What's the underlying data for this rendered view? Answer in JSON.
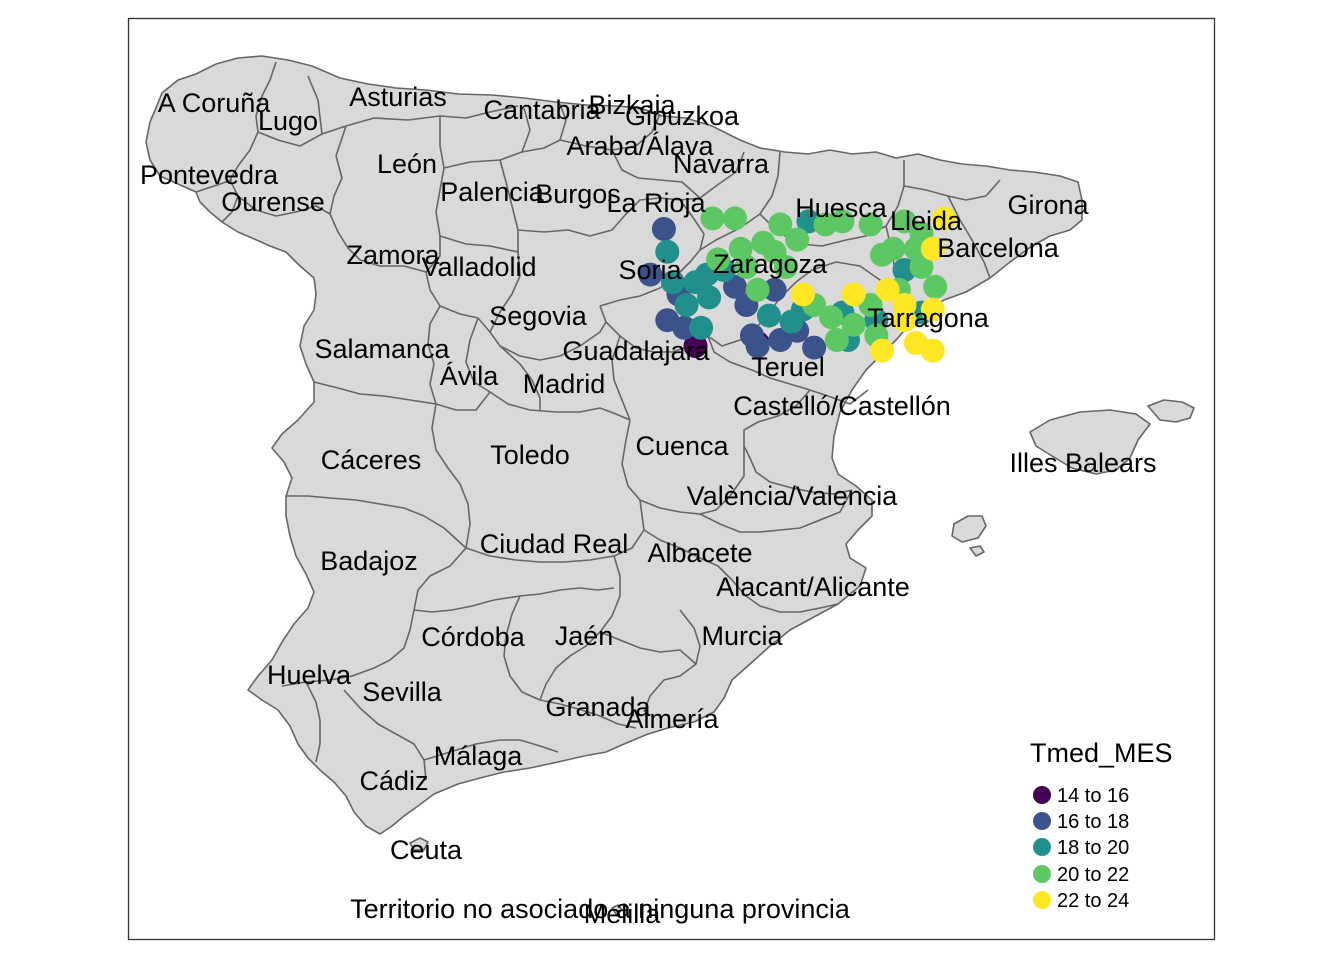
{
  "map": {
    "provinces": [
      {
        "key": "a-coruna",
        "label": "A Coruña"
      },
      {
        "key": "lugo",
        "label": "Lugo"
      },
      {
        "key": "asturias",
        "label": "Asturias"
      },
      {
        "key": "cantabria",
        "label": "Cantabria"
      },
      {
        "key": "bizkaia",
        "label": "Bizkaia"
      },
      {
        "key": "gipuzkoa",
        "label": "Gipuzkoa"
      },
      {
        "key": "araba",
        "label": "Araba/Álava"
      },
      {
        "key": "navarra",
        "label": "Navarra"
      },
      {
        "key": "pontevedra",
        "label": "Pontevedra"
      },
      {
        "key": "leon",
        "label": "León"
      },
      {
        "key": "ourense",
        "label": "Ourense"
      },
      {
        "key": "palencia",
        "label": "Palencia"
      },
      {
        "key": "burgos",
        "label": "Burgos"
      },
      {
        "key": "la-rioja",
        "label": "La Rioja"
      },
      {
        "key": "huesca",
        "label": "Huesca"
      },
      {
        "key": "lleida",
        "label": "Lleida"
      },
      {
        "key": "girona",
        "label": "Girona"
      },
      {
        "key": "barcelona",
        "label": "Barcelona"
      },
      {
        "key": "zamora",
        "label": "Zamora"
      },
      {
        "key": "valladolid",
        "label": "Valladolid"
      },
      {
        "key": "soria",
        "label": "Soria"
      },
      {
        "key": "zaragoza",
        "label": "Zaragoza"
      },
      {
        "key": "segovia",
        "label": "Segovia"
      },
      {
        "key": "tarragona",
        "label": "Tarragona"
      },
      {
        "key": "salamanca",
        "label": "Salamanca"
      },
      {
        "key": "guadalajara",
        "label": "Guadalajara"
      },
      {
        "key": "avila",
        "label": "Ávila"
      },
      {
        "key": "madrid",
        "label": "Madrid"
      },
      {
        "key": "teruel",
        "label": "Teruel"
      },
      {
        "key": "castellon",
        "label": "Castelló/Castellón"
      },
      {
        "key": "caceres",
        "label": "Cáceres"
      },
      {
        "key": "toledo",
        "label": "Toledo"
      },
      {
        "key": "cuenca",
        "label": "Cuenca"
      },
      {
        "key": "illes-balears",
        "label": "Illes Balears"
      },
      {
        "key": "valencia",
        "label": "València/Valencia"
      },
      {
        "key": "ciudad-real",
        "label": "Ciudad Real"
      },
      {
        "key": "albacete",
        "label": "Albacete"
      },
      {
        "key": "badajoz",
        "label": "Badajoz"
      },
      {
        "key": "alicante",
        "label": "Alacant/Alicante"
      },
      {
        "key": "cordoba",
        "label": "Córdoba"
      },
      {
        "key": "jaen",
        "label": "Jaén"
      },
      {
        "key": "murcia",
        "label": "Murcia"
      },
      {
        "key": "huelva",
        "label": "Huelva"
      },
      {
        "key": "sevilla",
        "label": "Sevilla"
      },
      {
        "key": "granada",
        "label": "Granada"
      },
      {
        "key": "almeria",
        "label": "Almería"
      },
      {
        "key": "malaga",
        "label": "Málaga"
      },
      {
        "key": "cadiz",
        "label": "Cádiz"
      },
      {
        "key": "ceuta",
        "label": "Ceuta"
      },
      {
        "key": "melilla",
        "label": "Melilla"
      },
      {
        "key": "territorio",
        "label": "Territorio no asociado a ninguna provincia"
      }
    ],
    "colors": {
      "land": "#d9d9d9",
      "border": "#666666",
      "frame": "#333333"
    }
  },
  "legend": {
    "title": "Tmed_MES",
    "placement": "bottom-right",
    "items": [
      {
        "label": "14 to 16",
        "color": "#440154"
      },
      {
        "label": "16 to 18",
        "color": "#3B528B"
      },
      {
        "label": "18 to 20",
        "color": "#21908C"
      },
      {
        "label": "20 to 22",
        "color": "#5DC863"
      },
      {
        "label": "22 to 24",
        "color": "#FDE725"
      }
    ]
  },
  "stations": {
    "class_colors": [
      "#440154",
      "#3B528B",
      "#21908C",
      "#5DC863",
      "#FDE725"
    ],
    "points": [
      {
        "c": 1,
        "lon": -1.78,
        "lat": 41.85
      },
      {
        "c": 1,
        "lon": -1.9,
        "lat": 41.55
      },
      {
        "c": 1,
        "lon": -1.65,
        "lat": 41.42
      },
      {
        "c": 1,
        "lon": -1.75,
        "lat": 41.25
      },
      {
        "c": 1,
        "lon": -1.6,
        "lat": 41.2
      },
      {
        "c": 1,
        "lon": -1.15,
        "lat": 41.47
      },
      {
        "c": 1,
        "lon": -1.05,
        "lat": 41.35
      },
      {
        "c": 1,
        "lon": -1.0,
        "lat": 41.15
      },
      {
        "c": 1,
        "lon": -0.75,
        "lat": 41.12
      },
      {
        "c": 1,
        "lon": -0.6,
        "lat": 41.18
      },
      {
        "c": 1,
        "lon": -0.45,
        "lat": 41.07
      },
      {
        "c": 1,
        "lon": -0.95,
        "lat": 41.08
      },
      {
        "c": 1,
        "lon": -0.8,
        "lat": 41.45
      },
      {
        "c": 0,
        "lon": -1.5,
        "lat": 41.08
      },
      {
        "c": 0,
        "lon": -0.95,
        "lat": 41.1
      },
      {
        "c": 2,
        "lon": -1.75,
        "lat": 41.7
      },
      {
        "c": 2,
        "lon": -1.7,
        "lat": 41.5
      },
      {
        "c": 2,
        "lon": -1.5,
        "lat": 41.5
      },
      {
        "c": 2,
        "lon": -1.58,
        "lat": 41.35
      },
      {
        "c": 2,
        "lon": -1.38,
        "lat": 41.4
      },
      {
        "c": 2,
        "lon": -1.4,
        "lat": 41.55
      },
      {
        "c": 2,
        "lon": -1.45,
        "lat": 41.2
      },
      {
        "c": 2,
        "lon": -1.25,
        "lat": 41.58
      },
      {
        "c": 2,
        "lon": -0.85,
        "lat": 41.28
      },
      {
        "c": 2,
        "lon": -0.5,
        "lat": 41.9
      },
      {
        "c": 2,
        "lon": -0.55,
        "lat": 41.32
      },
      {
        "c": 2,
        "lon": -0.65,
        "lat": 41.24
      },
      {
        "c": 2,
        "lon": -0.2,
        "lat": 41.3
      },
      {
        "c": 2,
        "lon": 0.1,
        "lat": 41.25
      },
      {
        "c": 2,
        "lon": 0.35,
        "lat": 41.58
      },
      {
        "c": 2,
        "lon": 0.5,
        "lat": 41.3
      },
      {
        "c": 2,
        "lon": -0.15,
        "lat": 41.12
      },
      {
        "c": 3,
        "lon": -1.35,
        "lat": 41.92
      },
      {
        "c": 3,
        "lon": -1.15,
        "lat": 41.92
      },
      {
        "c": 3,
        "lon": -0.75,
        "lat": 41.88
      },
      {
        "c": 3,
        "lon": -0.6,
        "lat": 41.78
      },
      {
        "c": 3,
        "lon": -0.35,
        "lat": 41.88
      },
      {
        "c": 3,
        "lon": -0.2,
        "lat": 41.9
      },
      {
        "c": 3,
        "lon": 0.05,
        "lat": 41.88
      },
      {
        "c": 3,
        "lon": 0.35,
        "lat": 41.9
      },
      {
        "c": 3,
        "lon": -1.1,
        "lat": 41.72
      },
      {
        "c": 3,
        "lon": -0.9,
        "lat": 41.76
      },
      {
        "c": 3,
        "lon": -0.8,
        "lat": 41.7
      },
      {
        "c": 3,
        "lon": -1.3,
        "lat": 41.65
      },
      {
        "c": 3,
        "lon": -1.05,
        "lat": 41.6
      },
      {
        "c": 3,
        "lon": -0.7,
        "lat": 41.6
      },
      {
        "c": 3,
        "lon": -0.95,
        "lat": 41.45
      },
      {
        "c": 3,
        "lon": -0.45,
        "lat": 41.35
      },
      {
        "c": 3,
        "lon": -0.3,
        "lat": 41.27
      },
      {
        "c": 3,
        "lon": -0.1,
        "lat": 41.22
      },
      {
        "c": 3,
        "lon": 0.15,
        "lat": 41.68
      },
      {
        "c": 3,
        "lon": 0.25,
        "lat": 41.72
      },
      {
        "c": 3,
        "lon": 0.45,
        "lat": 41.72
      },
      {
        "c": 3,
        "lon": 0.5,
        "lat": 41.6
      },
      {
        "c": 3,
        "lon": 0.3,
        "lat": 41.45
      },
      {
        "c": 3,
        "lon": 0.1,
        "lat": 41.15
      },
      {
        "c": 3,
        "lon": -0.25,
        "lat": 41.12
      },
      {
        "c": 3,
        "lon": 0.05,
        "lat": 41.35
      },
      {
        "c": 3,
        "lon": 0.5,
        "lat": 41.82
      },
      {
        "c": 3,
        "lon": 0.62,
        "lat": 41.47
      },
      {
        "c": 4,
        "lon": 0.7,
        "lat": 41.92
      },
      {
        "c": 4,
        "lon": 0.6,
        "lat": 41.72
      },
      {
        "c": 4,
        "lon": -0.1,
        "lat": 41.42
      },
      {
        "c": 4,
        "lon": -0.55,
        "lat": 41.42
      },
      {
        "c": 4,
        "lon": 0.2,
        "lat": 41.45
      },
      {
        "c": 4,
        "lon": 0.35,
        "lat": 41.35
      },
      {
        "c": 4,
        "lon": 0.6,
        "lat": 41.32
      },
      {
        "c": 4,
        "lon": 0.35,
        "lat": 41.25
      },
      {
        "c": 4,
        "lon": 0.45,
        "lat": 41.1
      },
      {
        "c": 4,
        "lon": 0.6,
        "lat": 41.05
      },
      {
        "c": 4,
        "lon": 0.15,
        "lat": 41.05
      }
    ]
  }
}
